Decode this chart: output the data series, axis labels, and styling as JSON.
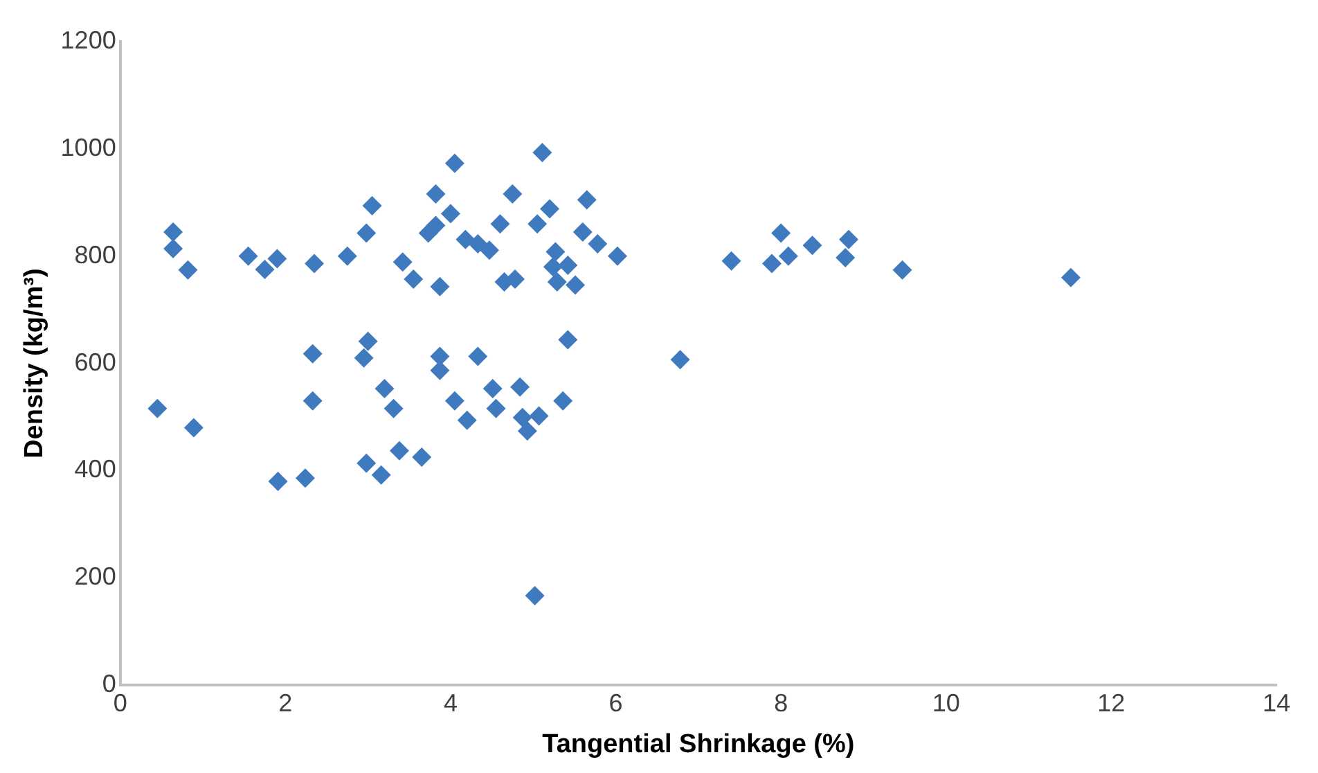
{
  "chart_data": {
    "type": "scatter",
    "xlabel": "Tangential Shrinkage (%)",
    "ylabel": "Density (kg/m³)",
    "marker": "diamond",
    "grid": false,
    "legend": false,
    "xlim": [
      0,
      14
    ],
    "xticks": [
      0,
      2,
      4,
      6,
      8,
      10,
      12,
      14
    ],
    "ylim": [
      0,
      1200
    ],
    "yticks": [
      0,
      200,
      400,
      600,
      800,
      1000,
      1200
    ],
    "series": [
      {
        "color": "#3f7abf",
        "x": [
          0.45,
          0.64,
          0.64,
          0.82,
          0.89,
          1.55,
          1.75,
          1.9,
          2.35,
          2.75,
          2.98,
          3.05,
          2.33,
          2.33,
          1.91,
          2.24,
          2.98,
          3.16,
          3.38,
          3.0,
          2.95,
          3.2,
          3.31,
          3.65,
          3.42,
          3.55,
          3.73,
          3.82,
          3.82,
          4.0,
          4.05,
          3.87,
          4.18,
          4.33,
          4.47,
          4.6,
          4.75,
          4.65,
          4.78,
          5.11,
          5.05,
          5.2,
          5.65,
          5.6,
          5.78,
          6.02,
          5.27,
          5.42,
          5.24,
          5.51,
          5.29,
          3.87,
          3.87,
          4.33,
          4.05,
          4.2,
          4.51,
          4.55,
          4.84,
          4.87,
          5.07,
          4.93,
          5.36,
          5.42,
          5.02,
          6.78,
          7.4,
          8.0,
          7.89,
          8.09,
          8.38,
          8.82,
          8.78,
          9.47,
          11.51
        ],
        "values": [
          516,
          845,
          814,
          774,
          480,
          800,
          775,
          795,
          786,
          800,
          843,
          894,
          618,
          530,
          380,
          386,
          414,
          392,
          437,
          641,
          610,
          553,
          516,
          425,
          789,
          757,
          843,
          916,
          857,
          879,
          973,
          743,
          831,
          823,
          811,
          860,
          916,
          752,
          757,
          993,
          860,
          888,
          905,
          845,
          823,
          800,
          808,
          783,
          780,
          746,
          752,
          613,
          587,
          613,
          530,
          494,
          553,
          516,
          556,
          499,
          502,
          474,
          530,
          644,
          167,
          607,
          791,
          843,
          786,
          800,
          820,
          831,
          797,
          774,
          760
        ]
      }
    ]
  }
}
